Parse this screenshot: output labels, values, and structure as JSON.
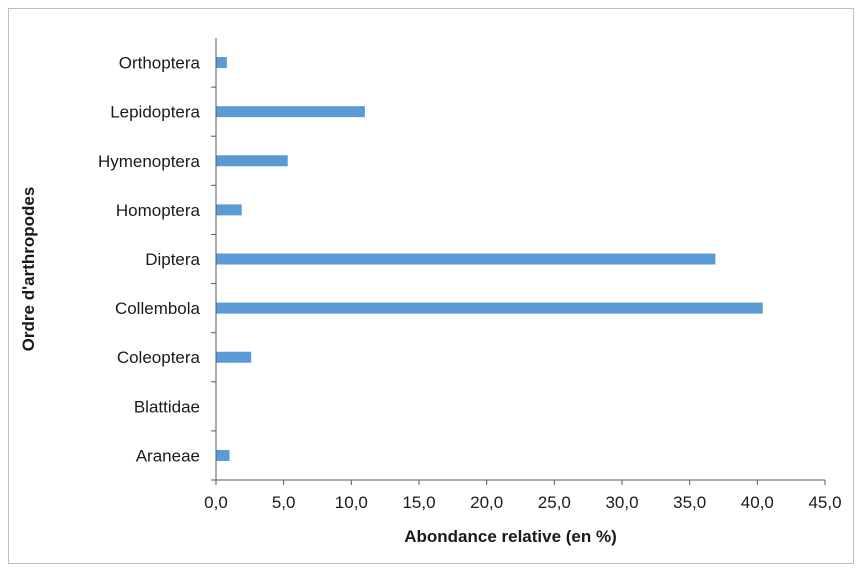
{
  "chart_data": {
    "type": "bar",
    "orientation": "horizontal",
    "categories": [
      "Araneae",
      "Blattidae",
      "Coleoptera",
      "Collembola",
      "Diptera",
      "Homoptera",
      "Hymenoptera",
      "Lepidoptera",
      "Orthoptera"
    ],
    "series": [
      {
        "values": [
          1.0,
          0.0,
          2.6,
          40.4,
          36.9,
          1.9,
          5.3,
          11.0,
          0.8
        ]
      }
    ],
    "xlabel": "Abondance relative (en %)",
    "ylabel": "Ordre d'arthropodes",
    "xlim": [
      0,
      45
    ],
    "xticks": [
      "0,0",
      "5,0",
      "10,0",
      "15,0",
      "20,0",
      "25,0",
      "30,0",
      "35,0",
      "40,0",
      "45,0"
    ],
    "grid": false,
    "legend": "none",
    "colors": {
      "bar": "#5b9bd5",
      "axis": "#595959",
      "text": "#1a1a1a"
    }
  }
}
